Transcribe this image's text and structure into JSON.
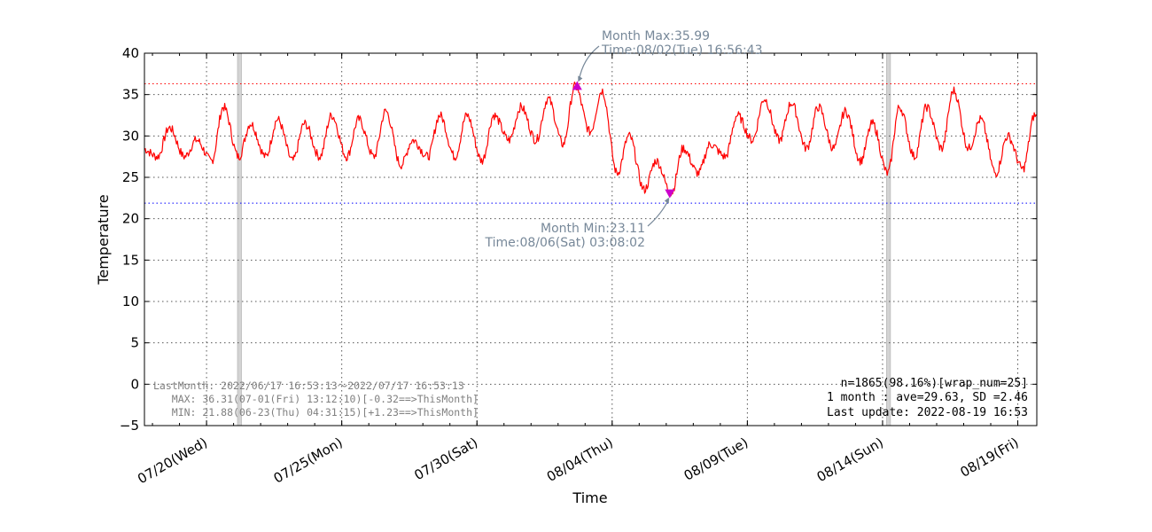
{
  "chart_data": {
    "type": "line",
    "xlabel": "Time",
    "ylabel": "Temperature",
    "ylim": [
      -5,
      40
    ],
    "yticks": [
      -5,
      0,
      5,
      10,
      15,
      20,
      25,
      30,
      35,
      40
    ],
    "ytick_labels": [
      "−5",
      "0",
      "5",
      "10",
      "15",
      "20",
      "25",
      "30",
      "35",
      "40"
    ],
    "x_start": "2022-07-17 16:53",
    "x_end": "2022-08-19 16:53",
    "xticks": [
      {
        "label": "07/20(Wed)",
        "date": "2022-07-20"
      },
      {
        "label": "07/25(Mon)",
        "date": "2022-07-25"
      },
      {
        "label": "07/30(Sat)",
        "date": "2022-07-30"
      },
      {
        "label": "08/04(Thu)",
        "date": "2022-08-04"
      },
      {
        "label": "08/09(Tue)",
        "date": "2022-08-09"
      },
      {
        "label": "08/14(Sun)",
        "date": "2022-08-14"
      },
      {
        "label": "08/19(Fri)",
        "date": "2022-08-19"
      }
    ],
    "grid": true,
    "series": [
      {
        "color": "#ff0000",
        "daily": [
          {
            "date": "2022-07-17",
            "min": 26.0,
            "max": 28.5
          },
          {
            "date": "2022-07-18",
            "min": 27.5,
            "max": 31.0
          },
          {
            "date": "2022-07-19",
            "min": 27.5,
            "max": 29.5
          },
          {
            "date": "2022-07-20",
            "min": 27.0,
            "max": 33.5
          },
          {
            "date": "2022-07-21",
            "min": 27.5,
            "max": 31.5
          },
          {
            "date": "2022-07-22",
            "min": 27.5,
            "max": 32.0
          },
          {
            "date": "2022-07-23",
            "min": 27.0,
            "max": 31.5
          },
          {
            "date": "2022-07-24",
            "min": 27.5,
            "max": 32.5
          },
          {
            "date": "2022-07-25",
            "min": 27.5,
            "max": 32.0
          },
          {
            "date": "2022-07-26",
            "min": 27.5,
            "max": 33.0
          },
          {
            "date": "2022-07-27",
            "min": 26.5,
            "max": 29.5
          },
          {
            "date": "2022-07-28",
            "min": 27.5,
            "max": 32.5
          },
          {
            "date": "2022-07-29",
            "min": 27.5,
            "max": 32.5
          },
          {
            "date": "2022-07-30",
            "min": 27.0,
            "max": 32.5
          },
          {
            "date": "2022-07-31",
            "min": 29.5,
            "max": 33.5
          },
          {
            "date": "2022-08-01",
            "min": 29.5,
            "max": 34.5
          },
          {
            "date": "2022-08-02",
            "min": 29.0,
            "max": 35.99
          },
          {
            "date": "2022-08-03",
            "min": 30.5,
            "max": 35.5
          },
          {
            "date": "2022-08-04",
            "min": 25.5,
            "max": 30.0
          },
          {
            "date": "2022-08-05",
            "min": 23.5,
            "max": 27.0
          },
          {
            "date": "2022-08-06",
            "min": 23.11,
            "max": 28.5
          },
          {
            "date": "2022-08-07",
            "min": 25.5,
            "max": 29.0
          },
          {
            "date": "2022-08-08",
            "min": 27.5,
            "max": 32.5
          },
          {
            "date": "2022-08-09",
            "min": 29.5,
            "max": 34.5
          },
          {
            "date": "2022-08-10",
            "min": 29.5,
            "max": 34.0
          },
          {
            "date": "2022-08-11",
            "min": 28.5,
            "max": 33.5
          },
          {
            "date": "2022-08-12",
            "min": 28.5,
            "max": 33.0
          },
          {
            "date": "2022-08-13",
            "min": 27.0,
            "max": 31.5
          },
          {
            "date": "2022-08-14",
            "min": 25.5,
            "max": 33.5
          },
          {
            "date": "2022-08-15",
            "min": 27.5,
            "max": 33.5
          },
          {
            "date": "2022-08-16",
            "min": 28.5,
            "max": 35.5
          },
          {
            "date": "2022-08-17",
            "min": 28.5,
            "max": 32.0
          },
          {
            "date": "2022-08-18",
            "min": 25.5,
            "max": 30.0
          },
          {
            "date": "2022-08-19",
            "min": 26.0,
            "max": 32.5
          }
        ]
      }
    ],
    "reference_lines": [
      {
        "kind": "last-month-max",
        "value": 36.31,
        "color": "#ff0000",
        "style": "dotted"
      },
      {
        "kind": "last-month-min",
        "value": 21.88,
        "color": "#0000ff",
        "style": "dotted"
      }
    ],
    "markers": [
      {
        "kind": "max",
        "datetime": "2022-08-02 16:56:43",
        "value": 35.99,
        "symbol": "triangle-up",
        "color": "#cc00cc"
      },
      {
        "kind": "min",
        "datetime": "2022-08-06 03:08:02",
        "value": 23.11,
        "symbol": "triangle-down",
        "color": "#cc00cc"
      }
    ],
    "shaded_bands": [
      {
        "from": "2022-07-21 03:30",
        "to": "2022-07-21 07:00",
        "color": "#d3d3d3"
      },
      {
        "from": "2022-08-14 03:30",
        "to": "2022-08-14 07:00",
        "color": "#d3d3d3"
      }
    ],
    "annotations": {
      "max_label_1": "Month Max:35.99",
      "max_label_2": "Time:08/02(Tue) 16:56:43",
      "min_label_1": "Month Min:23.11",
      "min_label_2": "Time:08/06(Sat) 03:08:02"
    },
    "last_month_text": [
      "LastMonth: 2022/06/17 16:53:13～2022/07/17 16:53:13",
      "   MAX: 36.31(07-01(Fri) 13:12:10)[-0.32==>ThisMonth]",
      "   MIN: 21.88(06-23(Thu) 04:31:15)[+1.23==>ThisMonth]"
    ],
    "stats_text": [
      "n=1865(98.16%)[wrap_num=25]",
      "1 month : ave=29.63, SD =2.46",
      "Last update: 2022-08-19 16:53"
    ]
  }
}
